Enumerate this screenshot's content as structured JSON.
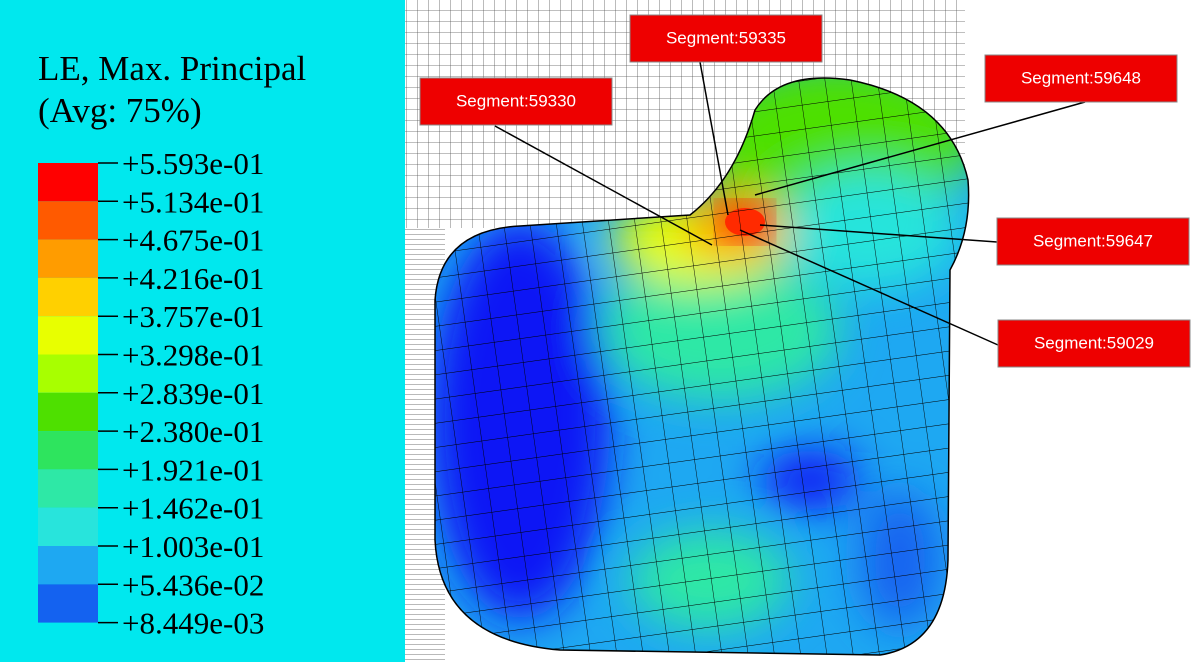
{
  "legend": {
    "title": "LE, Max. Principal",
    "subtitle": "(Avg: 75%)",
    "labels": [
      "+5.593e-01",
      "+5.134e-01",
      "+4.675e-01",
      "+4.216e-01",
      "+3.757e-01",
      "+3.298e-01",
      "+2.839e-01",
      "+2.380e-01",
      "+1.921e-01",
      "+1.462e-01",
      "+1.003e-01",
      "+5.436e-02",
      "+8.449e-03"
    ],
    "colors": [
      "#ff0000",
      "#ff5a00",
      "#ff9c00",
      "#ffd000",
      "#e8ff00",
      "#a8ff00",
      "#4ee000",
      "#2ee45e",
      "#2ee8a6",
      "#28e4dc",
      "#1ea8f2",
      "#1462f0",
      "#0a14f5"
    ]
  },
  "annotations": [
    {
      "label": "Segment:59335"
    },
    {
      "label": "Segment:59330"
    },
    {
      "label": "Segment:59648"
    },
    {
      "label": "Segment:59647"
    },
    {
      "label": "Segment:59029"
    }
  ]
}
